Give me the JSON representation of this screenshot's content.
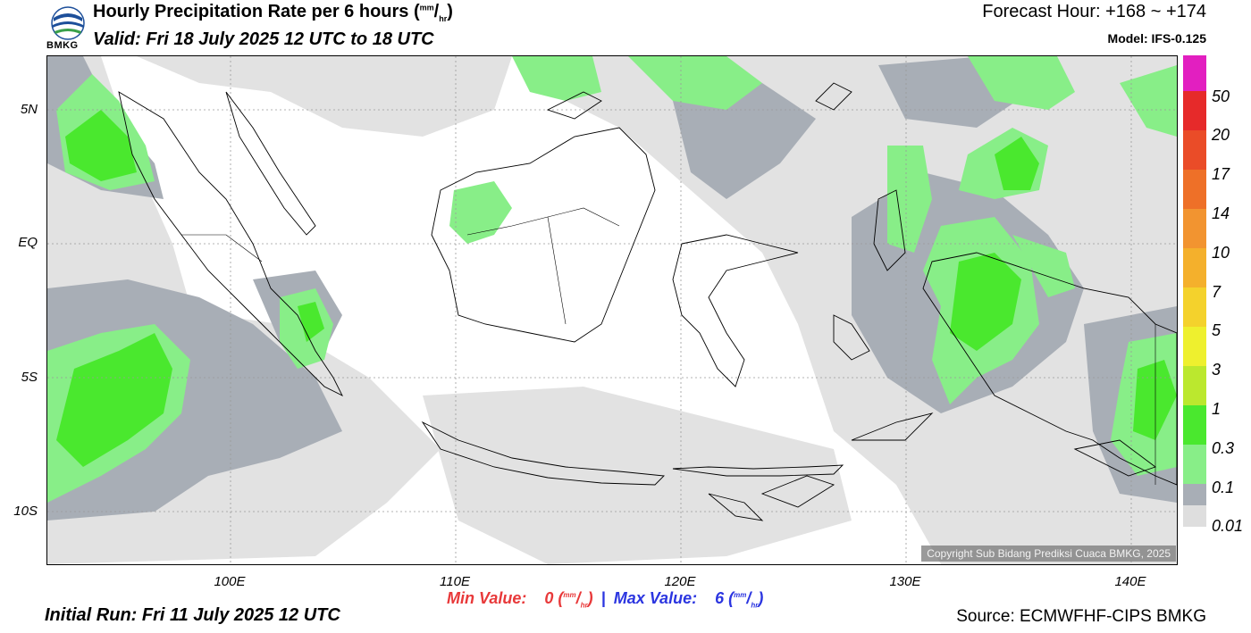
{
  "header": {
    "logo_name": "BMKG",
    "title_main": "Hourly Precipitation Rate per 6 hours (",
    "title_unit_sup": "mm",
    "title_unit_slash": "/",
    "title_unit_sub": "hr",
    "title_close": ")",
    "valid": "Valid: Fri 18 July 2025 12 UTC to 18 UTC",
    "forecast_hour": "Forecast Hour: +168 ~ +174",
    "model": "Model: IFS-0.125"
  },
  "map": {
    "lat_labels": [
      "5N",
      "EQ",
      "5S",
      "10S"
    ],
    "lon_labels": [
      "100E",
      "110E",
      "120E",
      "130E",
      "140E"
    ],
    "copyright": "Copyright Sub Bidang Prediksi Cuaca BMKG, 2025"
  },
  "colorbar": {
    "labels": [
      "50",
      "20",
      "17",
      "14",
      "10",
      "7",
      "5",
      "3",
      "1",
      "0.3",
      "0.1",
      "0.01"
    ],
    "colors": [
      "#e21fc0",
      "#e62a2a",
      "#ea4c28",
      "#ee7028",
      "#f29430",
      "#f4b02c",
      "#f4d22c",
      "#eef02e",
      "#bbe82e",
      "#4ae82e",
      "#88ee88",
      "#a8aeb6",
      "#dedede"
    ]
  },
  "footer": {
    "min_label": "Min Value:",
    "min_value": "0",
    "max_label": "Max Value:",
    "max_value": "6",
    "unit_sup": "mm",
    "unit_slash": "/",
    "unit_sub": "hr",
    "separator": "|",
    "initial_run": "Initial Run: Fri 11 July 2025 12 UTC",
    "source": "Source: ECMWFHF-CIPS BMKG"
  }
}
